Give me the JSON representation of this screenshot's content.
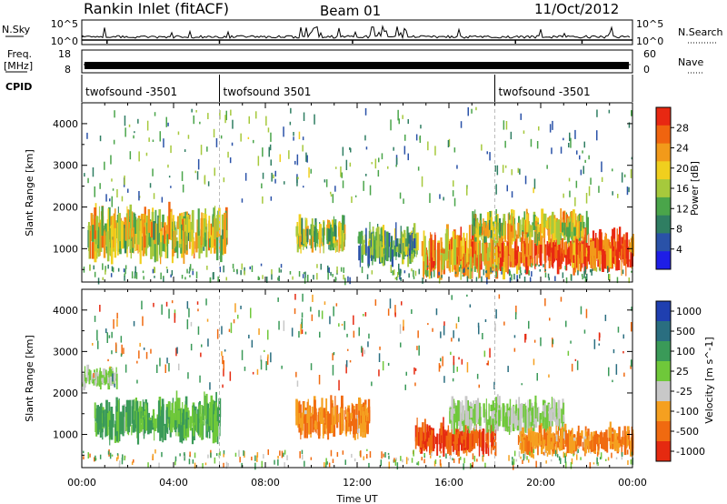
{
  "header": {
    "station": "Rankin Inlet (fitACF)",
    "beam": "Beam 01",
    "date": "11/Oct/2012"
  },
  "strips": {
    "nsky_label": "N.Sky",
    "nsky_ticks": [
      "10^5",
      "10^0"
    ],
    "nsearch_label": "N.Search",
    "nsearch_ticks": [
      "10^5",
      "10^0"
    ],
    "freq_label_1": "Freq.",
    "freq_label_2": "[MHz]",
    "freq_ticks": [
      "18",
      "8"
    ],
    "nave_label": "Nave",
    "nave_ticks": [
      "60",
      "0"
    ],
    "cpid_label": "CPID",
    "cpid_segments": [
      {
        "label": "twofsound -3501",
        "start_hour": 0
      },
      {
        "label": "twofsound 3501",
        "start_hour": 6
      },
      {
        "label": "twofsound -3501",
        "start_hour": 18
      }
    ]
  },
  "chart_data": [
    {
      "type": "heatmap",
      "panel": "power",
      "xlabel": "",
      "ylabel": "Slant Range [km]",
      "xlim": [
        0,
        24
      ],
      "ylim": [
        200,
        4500
      ],
      "yticks": [
        "1000",
        "2000",
        "3000",
        "4000"
      ],
      "colorbar": {
        "label": "Power [dB]",
        "range": [
          0,
          32
        ],
        "ticks": [
          "4",
          "8",
          "12",
          "16",
          "20",
          "24",
          "28"
        ],
        "colors": [
          "#1e1ee6",
          "#2a52a8",
          "#2f7e62",
          "#4aa54a",
          "#a6c93c",
          "#f0cf1e",
          "#f29a1a",
          "#f0640f",
          "#e82812"
        ]
      },
      "echo_regions": [
        {
          "t": [
            0.2,
            6.3
          ],
          "r": [
            700,
            2200
          ],
          "value": 18
        },
        {
          "t": [
            9.3,
            11.5
          ],
          "r": [
            900,
            1900
          ],
          "value": 16
        },
        {
          "t": [
            12.0,
            14.6
          ],
          "r": [
            600,
            1700
          ],
          "value": 12
        },
        {
          "t": [
            14.8,
            18.5
          ],
          "r": [
            300,
            1600
          ],
          "value": 22
        },
        {
          "t": [
            18.0,
            24.0
          ],
          "r": [
            400,
            1600
          ],
          "value": 28
        },
        {
          "t": [
            17.0,
            22.0
          ],
          "r": [
            1100,
            2000
          ],
          "value": 18
        }
      ]
    },
    {
      "type": "heatmap",
      "panel": "velocity",
      "xlabel": "Time UT",
      "ylabel": "Slant Range [km]",
      "xlim": [
        0,
        24
      ],
      "ylim": [
        200,
        4500
      ],
      "xticks": [
        "00:00",
        "04:00",
        "08:00",
        "12:00",
        "16:00",
        "20:00",
        "00:00"
      ],
      "yticks": [
        "1000",
        "2000",
        "3000",
        "4000"
      ],
      "colorbar": {
        "label": "Velocity [m s^-1]",
        "ticks": [
          "1000",
          "500",
          "100",
          "25",
          "-25",
          "-100",
          "-500",
          "-1000"
        ],
        "colors": [
          "#1f3fb0",
          "#2a6e80",
          "#3a9a58",
          "#6fc83a",
          "#c8c8c8",
          "#f5a020",
          "#f06a10",
          "#e52a10"
        ]
      },
      "echo_regions": [
        {
          "t": [
            0.5,
            6.0
          ],
          "r": [
            800,
            2100
          ],
          "value": 100
        },
        {
          "t": [
            0.0,
            1.5
          ],
          "r": [
            2100,
            2700
          ],
          "value": 25
        },
        {
          "t": [
            9.3,
            12.5
          ],
          "r": [
            900,
            2000
          ],
          "value": -100
        },
        {
          "t": [
            14.5,
            18.0
          ],
          "r": [
            500,
            1400
          ],
          "value": -500
        },
        {
          "t": [
            16.0,
            21.0
          ],
          "r": [
            1000,
            2000
          ],
          "value": 25
        },
        {
          "t": [
            19.0,
            24.0
          ],
          "r": [
            500,
            1300
          ],
          "value": -100
        }
      ]
    }
  ]
}
